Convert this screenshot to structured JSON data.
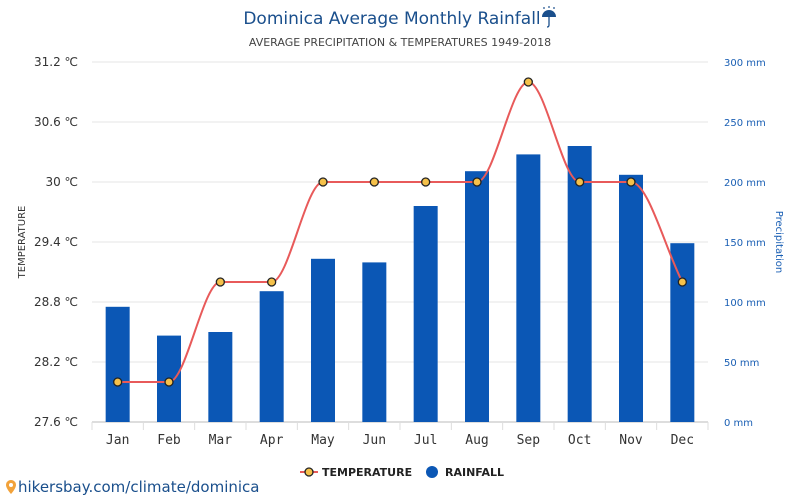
{
  "chart_data": {
    "type": "bar",
    "title": "Dominica Average Monthly Rainfall",
    "title_icon": "umbrella-icon",
    "subtitle": "AVERAGE PRECIPITATION & TEMPERATURES 1949-2018",
    "categories": [
      "Jan",
      "Feb",
      "Mar",
      "Apr",
      "May",
      "Jun",
      "Jul",
      "Aug",
      "Sep",
      "Oct",
      "Nov",
      "Dec"
    ],
    "series": [
      {
        "name": "RAINFALL",
        "type": "bar",
        "axis": "right",
        "unit": "mm",
        "color": "#0b57b5",
        "values": [
          96,
          72,
          75,
          109,
          136,
          133,
          180,
          209,
          223,
          230,
          206,
          149
        ]
      },
      {
        "name": "TEMPERATURE",
        "type": "line",
        "axis": "left",
        "unit": "°C",
        "color": "#e85a5a",
        "marker_color": "#f5c14a",
        "values": [
          28,
          28,
          29,
          29,
          30,
          30,
          30,
          30,
          31,
          30,
          30,
          29
        ]
      }
    ],
    "y_left": {
      "label": "TEMPERATURE",
      "ticks": [
        "31.2 ℃",
        "30.6 ℃",
        "30 ℃",
        "29.4 ℃",
        "28.8 ℃",
        "28.2 ℃",
        "27.6 ℃"
      ],
      "range": [
        27.6,
        31.2
      ]
    },
    "y_right": {
      "label": "Precipitation",
      "ticks": [
        "300 mm",
        "250 mm",
        "200 mm",
        "150 mm",
        "100 mm",
        "50 mm",
        "0 mm"
      ],
      "range": [
        0,
        300
      ]
    },
    "grid": true,
    "legend_position": "bottom-center"
  },
  "footer": {
    "icon": "location-pin-icon",
    "text": "hikersbay.com/climate/dominica"
  }
}
